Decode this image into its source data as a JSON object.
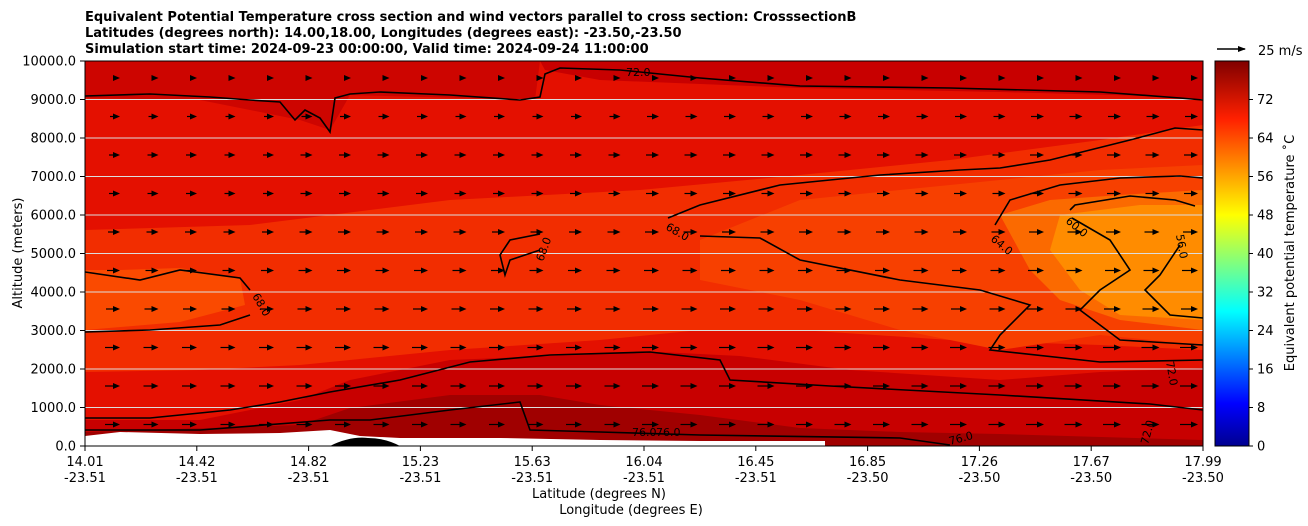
{
  "chart_data": {
    "type": "heatmap",
    "title_lines": [
      "Equivalent Potential Temperature cross section and wind vectors parallel to cross section: CrosssectionB",
      "Latitudes (degrees north): 14.00,18.00, Longitudes (degrees east): -23.50,-23.50",
      "Simulation start time: 2024-09-23 00:00:00, Valid time: 2024-09-24 11:00:00"
    ],
    "ylabel": "Altitude (meters)",
    "xlabel_lines": [
      "Latitude (degrees N)",
      "Longitude (degrees E)"
    ],
    "ylim": [
      0,
      10000
    ],
    "y_ticks": [
      "0.0",
      "1000.0",
      "2000.0",
      "3000.0",
      "4000.0",
      "5000.0",
      "6000.0",
      "7000.0",
      "8000.0",
      "9000.0",
      "10000.0"
    ],
    "x_ticks": [
      {
        "lat": "14.01",
        "lon": "-23.51"
      },
      {
        "lat": "14.42",
        "lon": "-23.51"
      },
      {
        "lat": "14.82",
        "lon": "-23.51"
      },
      {
        "lat": "15.23",
        "lon": "-23.51"
      },
      {
        "lat": "15.63",
        "lon": "-23.51"
      },
      {
        "lat": "16.04",
        "lon": "-23.51"
      },
      {
        "lat": "16.45",
        "lon": "-23.51"
      },
      {
        "lat": "16.85",
        "lon": "-23.50"
      },
      {
        "lat": "17.26",
        "lon": "-23.50"
      },
      {
        "lat": "17.67",
        "lon": "-23.50"
      },
      {
        "lat": "17.99",
        "lon": "-23.50"
      }
    ],
    "grid": "horizontal",
    "colorbar": {
      "label": "Equivalent potential temperature ˚C",
      "ticks": [
        "0",
        "8",
        "16",
        "24",
        "32",
        "40",
        "48",
        "56",
        "64",
        "72"
      ],
      "range": [
        0,
        80
      ]
    },
    "quiver_key": "25 m/s",
    "contour_labels": [
      "72.0",
      "68.0",
      "68.0",
      "68.0",
      "64.0",
      "60.0",
      "56.0",
      "72.0",
      "72.0",
      "76.0",
      "76.0",
      "76.0"
    ]
  }
}
